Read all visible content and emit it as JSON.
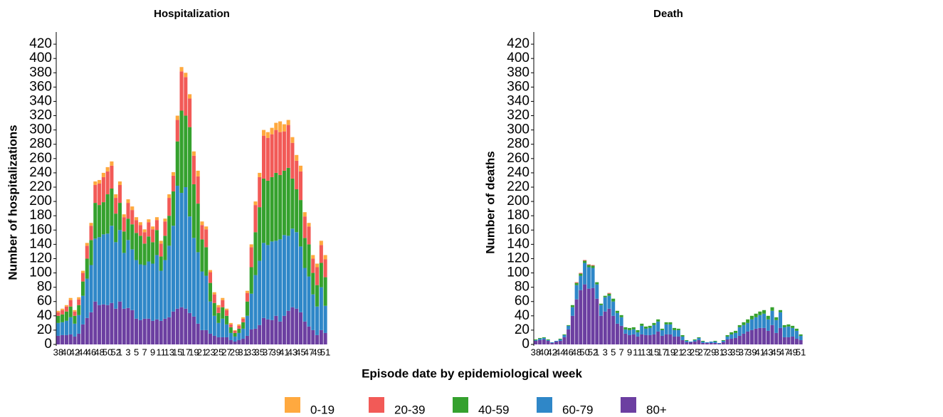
{
  "chart_data": [
    {
      "type": "bar",
      "stacked": true,
      "title": "Hospitalization",
      "ylabel": "Number of hospitalizations",
      "xlabel": "Episode date by epidemiological week",
      "categories": [
        "38",
        null,
        "40",
        null,
        "42",
        null,
        "44",
        null,
        "46",
        null,
        "48",
        null,
        "50",
        null,
        "52",
        "1",
        null,
        "3",
        null,
        "5",
        null,
        "7",
        null,
        "9",
        null,
        "11",
        null,
        "13",
        null,
        "15",
        null,
        "17",
        null,
        "19",
        null,
        "21",
        null,
        "23",
        null,
        "25",
        null,
        "27",
        null,
        "29",
        null,
        "31",
        null,
        "33",
        null,
        "35",
        null,
        "37",
        null,
        "39",
        null,
        "41",
        null,
        "43",
        null,
        "45",
        null,
        "47",
        null,
        "49",
        null,
        "51"
      ],
      "series": [
        {
          "name": "0-19",
          "color": "#ffa93f",
          "values": [
            2,
            2,
            2,
            3,
            2,
            3,
            3,
            4,
            4,
            5,
            5,
            6,
            6,
            6,
            5,
            5,
            4,
            5,
            5,
            4,
            4,
            4,
            4,
            4,
            4,
            4,
            4,
            5,
            5,
            6,
            6,
            6,
            6,
            6,
            8,
            5,
            4,
            3,
            3,
            3,
            3,
            2,
            2,
            1,
            2,
            2,
            3,
            4,
            5,
            6,
            8,
            8,
            9,
            10,
            15,
            10,
            7,
            8,
            8,
            8,
            6,
            5,
            5,
            5,
            6,
            6
          ]
        },
        {
          "name": "20-39",
          "color": "#f25a57",
          "values": [
            5,
            6,
            7,
            9,
            6,
            8,
            12,
            18,
            20,
            25,
            30,
            35,
            32,
            32,
            22,
            25,
            20,
            22,
            20,
            18,
            15,
            16,
            20,
            18,
            14,
            18,
            20,
            25,
            22,
            30,
            55,
            54,
            40,
            40,
            38,
            20,
            25,
            15,
            12,
            8,
            10,
            8,
            4,
            3,
            4,
            5,
            12,
            28,
            38,
            42,
            60,
            60,
            60,
            60,
            60,
            55,
            60,
            50,
            40,
            40,
            30,
            25,
            20,
            25,
            25,
            25
          ]
        },
        {
          "name": "40-59",
          "color": "#35a12e",
          "values": [
            10,
            11,
            13,
            15,
            11,
            14,
            20,
            28,
            35,
            50,
            45,
            45,
            55,
            52,
            40,
            38,
            30,
            30,
            35,
            38,
            40,
            30,
            35,
            30,
            35,
            20,
            34,
            42,
            48,
            62,
            115,
            100,
            125,
            75,
            68,
            45,
            40,
            26,
            18,
            14,
            16,
            12,
            8,
            5,
            6,
            9,
            20,
            37,
            60,
            75,
            90,
            90,
            90,
            95,
            90,
            90,
            95,
            70,
            60,
            65,
            42,
            45,
            30,
            30,
            34,
            40
          ]
        },
        {
          "name": "60-79",
          "color": "#2f87c8",
          "values": [
            18,
            18,
            20,
            24,
            18,
            26,
            40,
            55,
            66,
            88,
            95,
            98,
            100,
            108,
            93,
            100,
            78,
            95,
            85,
            82,
            78,
            75,
            80,
            80,
            90,
            70,
            82,
            100,
            120,
            172,
            160,
            170,
            135,
            110,
            100,
            82,
            76,
            45,
            28,
            20,
            26,
            18,
            10,
            7,
            10,
            14,
            28,
            50,
            75,
            90,
            105,
            104,
            110,
            105,
            115,
            113,
            105,
            110,
            107,
            92,
            75,
            70,
            50,
            40,
            60,
            38
          ]
        },
        {
          "name": "80+",
          "color": "#6c3fa1",
          "values": [
            12,
            13,
            13,
            14,
            11,
            15,
            28,
            37,
            45,
            60,
            55,
            56,
            55,
            58,
            50,
            60,
            50,
            51,
            48,
            36,
            34,
            36,
            36,
            33,
            35,
            33,
            36,
            38,
            46,
            50,
            52,
            50,
            44,
            39,
            29,
            20,
            20,
            15,
            12,
            10,
            10,
            10,
            6,
            4,
            6,
            8,
            12,
            21,
            22,
            27,
            37,
            35,
            34,
            40,
            32,
            40,
            47,
            52,
            50,
            45,
            32,
            25,
            20,
            13,
            20,
            16
          ]
        }
      ],
      "ylim": [
        0,
        437
      ],
      "yticks": [
        0,
        20,
        40,
        60,
        80,
        100,
        120,
        140,
        160,
        180,
        200,
        220,
        240,
        260,
        280,
        300,
        320,
        340,
        360,
        380,
        400,
        420
      ]
    },
    {
      "type": "bar",
      "stacked": true,
      "title": "Death",
      "ylabel": "Number of deaths",
      "categories": [
        "38",
        null,
        "40",
        null,
        "42",
        null,
        "44",
        null,
        "46",
        null,
        "48",
        null,
        "50",
        null,
        "52",
        "1",
        null,
        "3",
        null,
        "5",
        null,
        "7",
        null,
        "9",
        null,
        "11",
        null,
        "13",
        null,
        "15",
        null,
        "17",
        null,
        "19",
        null,
        "21",
        null,
        "23",
        null,
        "25",
        null,
        "27",
        null,
        "29",
        null,
        "31",
        null,
        "33",
        null,
        "35",
        null,
        "37",
        null,
        "39",
        null,
        "41",
        null,
        "43",
        null,
        "45",
        null,
        "47",
        null,
        "49",
        null,
        "51"
      ],
      "series": [
        {
          "color": "#ffa93f",
          "values": [
            0,
            0,
            0,
            0,
            0,
            0,
            0,
            0,
            0,
            0,
            0,
            0,
            0,
            0,
            0,
            0,
            0,
            0,
            0,
            0,
            0,
            0,
            0,
            0,
            0,
            0,
            0,
            0,
            0,
            0,
            0,
            0,
            0,
            0,
            0,
            0,
            0,
            0,
            0,
            0,
            0,
            0,
            0,
            0,
            0,
            0,
            0,
            0,
            0,
            0,
            0,
            0,
            0,
            0,
            0,
            0,
            0,
            0,
            0,
            0,
            0,
            0,
            0,
            0,
            0,
            0
          ]
        },
        {
          "color": "#f25a57",
          "values": [
            0,
            0,
            0,
            0,
            0,
            0,
            0,
            0,
            0,
            0,
            1,
            1,
            1,
            1,
            1,
            0,
            0,
            0,
            1,
            0,
            0,
            0,
            0,
            0,
            0,
            0,
            0,
            0,
            0,
            0,
            0,
            0,
            0,
            0,
            0,
            0,
            0,
            0,
            0,
            0,
            0,
            0,
            0,
            0,
            0,
            0,
            0,
            0,
            0,
            0,
            0,
            0,
            0,
            0,
            0,
            0,
            0,
            0,
            0,
            0,
            0,
            0,
            0,
            0,
            0,
            0
          ]
        },
        {
          "color": "#35a12e",
          "values": [
            1,
            1,
            1,
            1,
            0,
            0,
            1,
            1,
            1,
            3,
            3,
            3,
            3,
            3,
            3,
            3,
            2,
            2,
            3,
            4,
            3,
            3,
            3,
            3,
            3,
            3,
            3,
            3,
            3,
            3,
            3,
            2,
            3,
            3,
            3,
            2,
            2,
            1,
            0,
            1,
            1,
            1,
            0,
            0,
            1,
            0,
            1,
            2,
            3,
            3,
            3,
            4,
            5,
            5,
            5,
            5,
            5,
            5,
            5,
            4,
            3,
            3,
            3,
            3,
            3,
            2
          ]
        },
        {
          "color": "#2f87c8",
          "values": [
            1,
            2,
            2,
            1,
            1,
            1,
            2,
            3,
            5,
            12,
            20,
            20,
            30,
            30,
            28,
            20,
            15,
            20,
            18,
            20,
            15,
            12,
            6,
            7,
            7,
            6,
            12,
            9,
            10,
            13,
            14,
            8,
            14,
            14,
            9,
            9,
            5,
            2,
            1,
            2,
            3,
            2,
            1,
            2,
            2,
            1,
            2,
            4,
            6,
            7,
            12,
            12,
            12,
            15,
            16,
            18,
            20,
            16,
            20,
            18,
            22,
            14,
            15,
            12,
            11,
            6
          ]
        },
        {
          "color": "#6c3fa1",
          "values": [
            5,
            6,
            7,
            5,
            2,
            4,
            5,
            10,
            21,
            40,
            63,
            76,
            84,
            78,
            79,
            64,
            40,
            46,
            50,
            40,
            29,
            26,
            15,
            13,
            14,
            11,
            14,
            13,
            13,
            14,
            18,
            12,
            14,
            14,
            11,
            11,
            6,
            3,
            3,
            4,
            6,
            2,
            2,
            2,
            2,
            1,
            3,
            7,
            8,
            9,
            12,
            15,
            18,
            20,
            22,
            23,
            23,
            19,
            27,
            16,
            23,
            10,
            10,
            11,
            8,
            6
          ]
        }
      ],
      "ylim": [
        0,
        437
      ],
      "yticks": [
        0,
        20,
        40,
        60,
        80,
        100,
        120,
        140,
        160,
        180,
        200,
        220,
        240,
        260,
        280,
        300,
        320,
        340,
        360,
        380,
        400,
        420
      ]
    }
  ]
}
